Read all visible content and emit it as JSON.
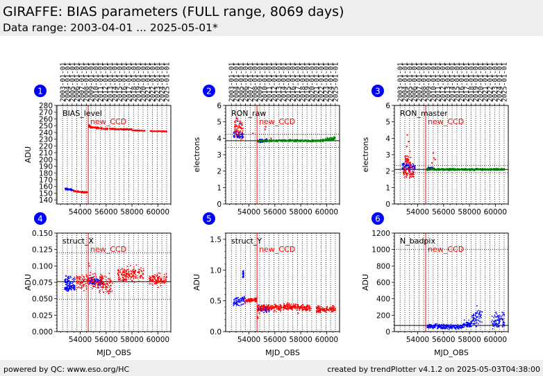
{
  "page": {
    "title": "GIRAFFE: BIAS parameters (FULL range, 8069 days)",
    "subtitle": "Data range: 2003-04-01 ... 2025-05-01*",
    "footer_left": "powered by QC: www.eso.org/HC",
    "footer_right": "created by trendPlotter v4.1.2 on 2025-05-03T04:38:00"
  },
  "colors": {
    "red": "#ff0000",
    "blue": "#0000ff",
    "green": "#008000",
    "badge": "#0000ff",
    "header_bg": "#eeeeee"
  },
  "chart_data": [
    {
      "id": "1",
      "type": "scatter",
      "label": "BIAS_level",
      "ylabel": "ADU",
      "xlabel": "",
      "xlim": [
        52200,
        61000
      ],
      "ylim": [
        134,
        280
      ],
      "yticks": [
        140,
        150,
        160,
        170,
        180,
        190,
        200,
        210,
        220,
        230,
        240,
        250,
        260,
        270,
        280
      ],
      "xticks": [
        54000,
        56000,
        58000,
        60000
      ],
      "show_xticklabels": true,
      "event": {
        "x": 54620,
        "label": "new_CCD"
      },
      "hlines": [],
      "series": [
        {
          "color": "blue",
          "segments": [
            [
              52800,
              53500,
              156.5,
              154.5,
              1.4
            ]
          ]
        },
        {
          "color": "red",
          "segments": [
            [
              53500,
              54550,
              153,
              151,
              1.0
            ],
            [
              54650,
              54800,
              250,
              248,
              1.5
            ],
            [
              54800,
              55700,
              248,
              246,
              1.5
            ],
            [
              55700,
              58000,
              245.5,
              244.5,
              0.9
            ],
            [
              58000,
              59000,
              243,
              242.5,
              0.6
            ],
            [
              59400,
              60700,
              242,
              241.5,
              0.6
            ]
          ]
        }
      ]
    },
    {
      "id": "2",
      "type": "scatter",
      "label": "RON_raw",
      "ylabel": "electrons",
      "xlabel": "",
      "xlim": [
        52200,
        61000
      ],
      "ylim": [
        0,
        6
      ],
      "yticks": [
        0,
        1,
        2,
        3,
        4,
        5,
        6
      ],
      "xticks": [
        54000,
        56000,
        58000,
        60000
      ],
      "show_xticklabels": true,
      "event": {
        "x": 54620,
        "label": "new_CCD"
      },
      "hlines": [
        {
          "y": 3.85,
          "style": "solid"
        },
        {
          "y": 4.25,
          "style": "dotted"
        },
        {
          "y": 3.45,
          "style": "dotted"
        }
      ],
      "series": [
        {
          "color": "blue",
          "segments": [
            [
              52800,
              53600,
              4.15,
              4.15,
              0.22
            ],
            [
              54700,
              55400,
              3.85,
              3.85,
              0.12
            ]
          ]
        },
        {
          "color": "red",
          "segments": [
            [
              52850,
              53600,
              4.7,
              4.4,
              0.6
            ]
          ]
        },
        {
          "color": "green",
          "segments": [
            [
              54650,
              59500,
              3.85,
              3.85,
              0.06
            ],
            [
              59500,
              60700,
              3.85,
              4.0,
              0.1
            ]
          ]
        }
      ],
      "outliers": [
        {
          "color": "red",
          "points": [
            [
              53200,
              5.4
            ],
            [
              53350,
              5.0
            ],
            [
              53050,
              5.2
            ],
            [
              53450,
              4.8
            ],
            [
              55300,
              4.7
            ],
            [
              55250,
              4.55
            ],
            [
              54300,
              4.3
            ],
            [
              55700,
              4.0
            ]
          ]
        },
        {
          "color": "blue",
          "points": [
            [
              53100,
              5.05
            ],
            [
              53300,
              4.9
            ]
          ]
        }
      ]
    },
    {
      "id": "3",
      "type": "scatter",
      "label": "RON_master",
      "ylabel": "electrons",
      "xlabel": "",
      "xlim": [
        52200,
        61000
      ],
      "ylim": [
        0,
        6
      ],
      "yticks": [
        0,
        1,
        2,
        3,
        4,
        5,
        6
      ],
      "xticks": [
        54000,
        56000,
        58000,
        60000
      ],
      "show_xticklabels": true,
      "event": {
        "x": 54620,
        "label": "new_CCD"
      },
      "hlines": [
        {
          "y": 2.1,
          "style": "solid"
        },
        {
          "y": 2.35,
          "style": "dotted"
        },
        {
          "y": 1.9,
          "style": "dotted"
        }
      ],
      "series": [
        {
          "color": "blue",
          "segments": [
            [
              52800,
              53800,
              2.3,
              2.25,
              0.25
            ],
            [
              54700,
              55300,
              2.15,
              2.15,
              0.1
            ]
          ]
        },
        {
          "color": "red",
          "segments": [
            [
              52900,
              53700,
              1.95,
              1.9,
              0.3
            ],
            [
              53000,
              53500,
              2.6,
              2.6,
              0.3
            ]
          ]
        },
        {
          "color": "green",
          "segments": [
            [
              54650,
              60700,
              2.1,
              2.1,
              0.06
            ]
          ]
        }
      ],
      "outliers": [
        {
          "color": "red",
          "points": [
            [
              53200,
              4.2
            ],
            [
              53300,
              3.8
            ],
            [
              53400,
              3.2
            ],
            [
              53150,
              3.5
            ],
            [
              55200,
              3.1
            ],
            [
              55250,
              2.8
            ],
            [
              55100,
              2.5
            ],
            [
              55350,
              2.7
            ]
          ]
        }
      ]
    },
    {
      "id": "4",
      "type": "scatter",
      "label": "struct_X",
      "ylabel": "ADU",
      "xlabel": "MJD_OBS",
      "xlim": [
        52200,
        61000
      ],
      "ylim": [
        0,
        0.15
      ],
      "yticks": [
        0.0,
        0.025,
        0.05,
        0.075,
        0.1,
        0.125,
        0.15
      ],
      "ydecimals": 3,
      "xticks": [
        54000,
        56000,
        58000,
        60000
      ],
      "show_xticklabels": true,
      "event": {
        "x": 54620,
        "label": "new_CCD"
      },
      "hlines": [
        {
          "y": 0.076,
          "style": "solid"
        },
        {
          "y": 0.12,
          "style": "dotted"
        },
        {
          "y": 0.049,
          "style": "dotted"
        }
      ],
      "series": [
        {
          "color": "blue",
          "segments": [
            [
              52800,
              53600,
              0.077,
              0.077,
              0.008
            ],
            [
              52800,
              53600,
              0.065,
              0.067,
              0.004
            ],
            [
              54700,
              55800,
              0.077,
              0.075,
              0.007
            ]
          ]
        },
        {
          "color": "red",
          "segments": [
            [
              53700,
              54600,
              0.075,
              0.077,
              0.012
            ],
            [
              54650,
              56500,
              0.078,
              0.072,
              0.013
            ],
            [
              56900,
              58900,
              0.085,
              0.088,
              0.011
            ],
            [
              59300,
              60700,
              0.078,
              0.08,
              0.009
            ]
          ]
        }
      ],
      "outliers": [
        {
          "color": "red",
          "points": [
            [
              54650,
              0.104
            ],
            [
              54700,
              0.1
            ],
            [
              55500,
              0.062
            ],
            [
              55800,
              0.06
            ],
            [
              56200,
              0.058
            ]
          ]
        }
      ]
    },
    {
      "id": "5",
      "type": "scatter",
      "label": "struct_Y",
      "ylabel": "ADU",
      "xlabel": "MJD_OBS",
      "xlim": [
        52200,
        61000
      ],
      "ylim": [
        0,
        1.6
      ],
      "yticks": [
        0.0,
        0.5,
        1.0,
        1.5
      ],
      "ydecimals": 1,
      "xticks": [
        54000,
        56000,
        58000,
        60000
      ],
      "show_xticklabels": true,
      "event": {
        "x": 54620,
        "label": "new_CCD"
      },
      "hlines": [],
      "series": [
        {
          "color": "blue",
          "segments": [
            [
              52800,
              53700,
              0.47,
              0.53,
              0.07
            ],
            [
              53500,
              53600,
              0.93,
              0.93,
              0.06
            ],
            [
              54700,
              55600,
              0.37,
              0.37,
              0.05
            ]
          ]
        },
        {
          "color": "red",
          "segments": [
            [
              53700,
              54600,
              0.5,
              0.52,
              0.03
            ],
            [
              54650,
              57200,
              0.38,
              0.4,
              0.05
            ],
            [
              57200,
              58800,
              0.4,
              0.38,
              0.05
            ],
            [
              59200,
              60700,
              0.36,
              0.36,
              0.05
            ]
          ]
        }
      ],
      "outliers": [
        {
          "color": "red",
          "points": [
            [
              54650,
              0.24
            ],
            [
              54700,
              0.22
            ],
            [
              54800,
              0.3
            ],
            [
              57800,
              0.3
            ]
          ]
        }
      ]
    },
    {
      "id": "6",
      "type": "scatter",
      "label": "N_badpix",
      "ylabel": "ADU",
      "xlabel": "MJD_OBS",
      "xlim": [
        52200,
        61000
      ],
      "ylim": [
        0,
        1200
      ],
      "yticks": [
        0,
        200,
        400,
        600,
        800,
        1000,
        1200
      ],
      "xticks": [
        54000,
        56000,
        58000,
        60000
      ],
      "show_xticklabels": true,
      "event": {
        "x": 54620,
        "label": "new_CCD"
      },
      "hlines": [
        {
          "y": 75,
          "style": "solid"
        },
        {
          "y": 1000,
          "style": "dotted"
        }
      ],
      "series": [
        {
          "color": "blue",
          "segments": [
            [
              54700,
              57500,
              65,
              60,
              30
            ],
            [
              57500,
              58200,
              80,
              100,
              40
            ],
            [
              58200,
              59000,
              160,
              180,
              100
            ],
            [
              59700,
              60700,
              130,
              150,
              90
            ]
          ]
        }
      ]
    }
  ],
  "top_axis_dates": [
    "2003-01-01",
    "2004-01-01",
    "2005-01-01",
    "2006-01-01",
    "2007-01-01",
    "2008-01-01",
    "2009-01-01",
    "2010-01-01",
    "2011-01-01",
    "2012-01-01",
    "2013-01-01",
    "2014-01-01",
    "2015-01-01",
    "2016-01-01",
    "2017-01-01",
    "2018-01-01",
    "2019-01-01",
    "2020-01-01",
    "2021-01-01",
    "2022-01-01",
    "2023-01-01",
    "2024-01-01",
    "2025-01-01"
  ],
  "top_axis_mjd": [
    52640,
    53005,
    53371,
    53736,
    54101,
    54466,
    54832,
    55197,
    55562,
    55927,
    56293,
    56658,
    57023,
    57388,
    57754,
    58119,
    58484,
    58849,
    59215,
    59580,
    59945,
    60310,
    60676
  ]
}
